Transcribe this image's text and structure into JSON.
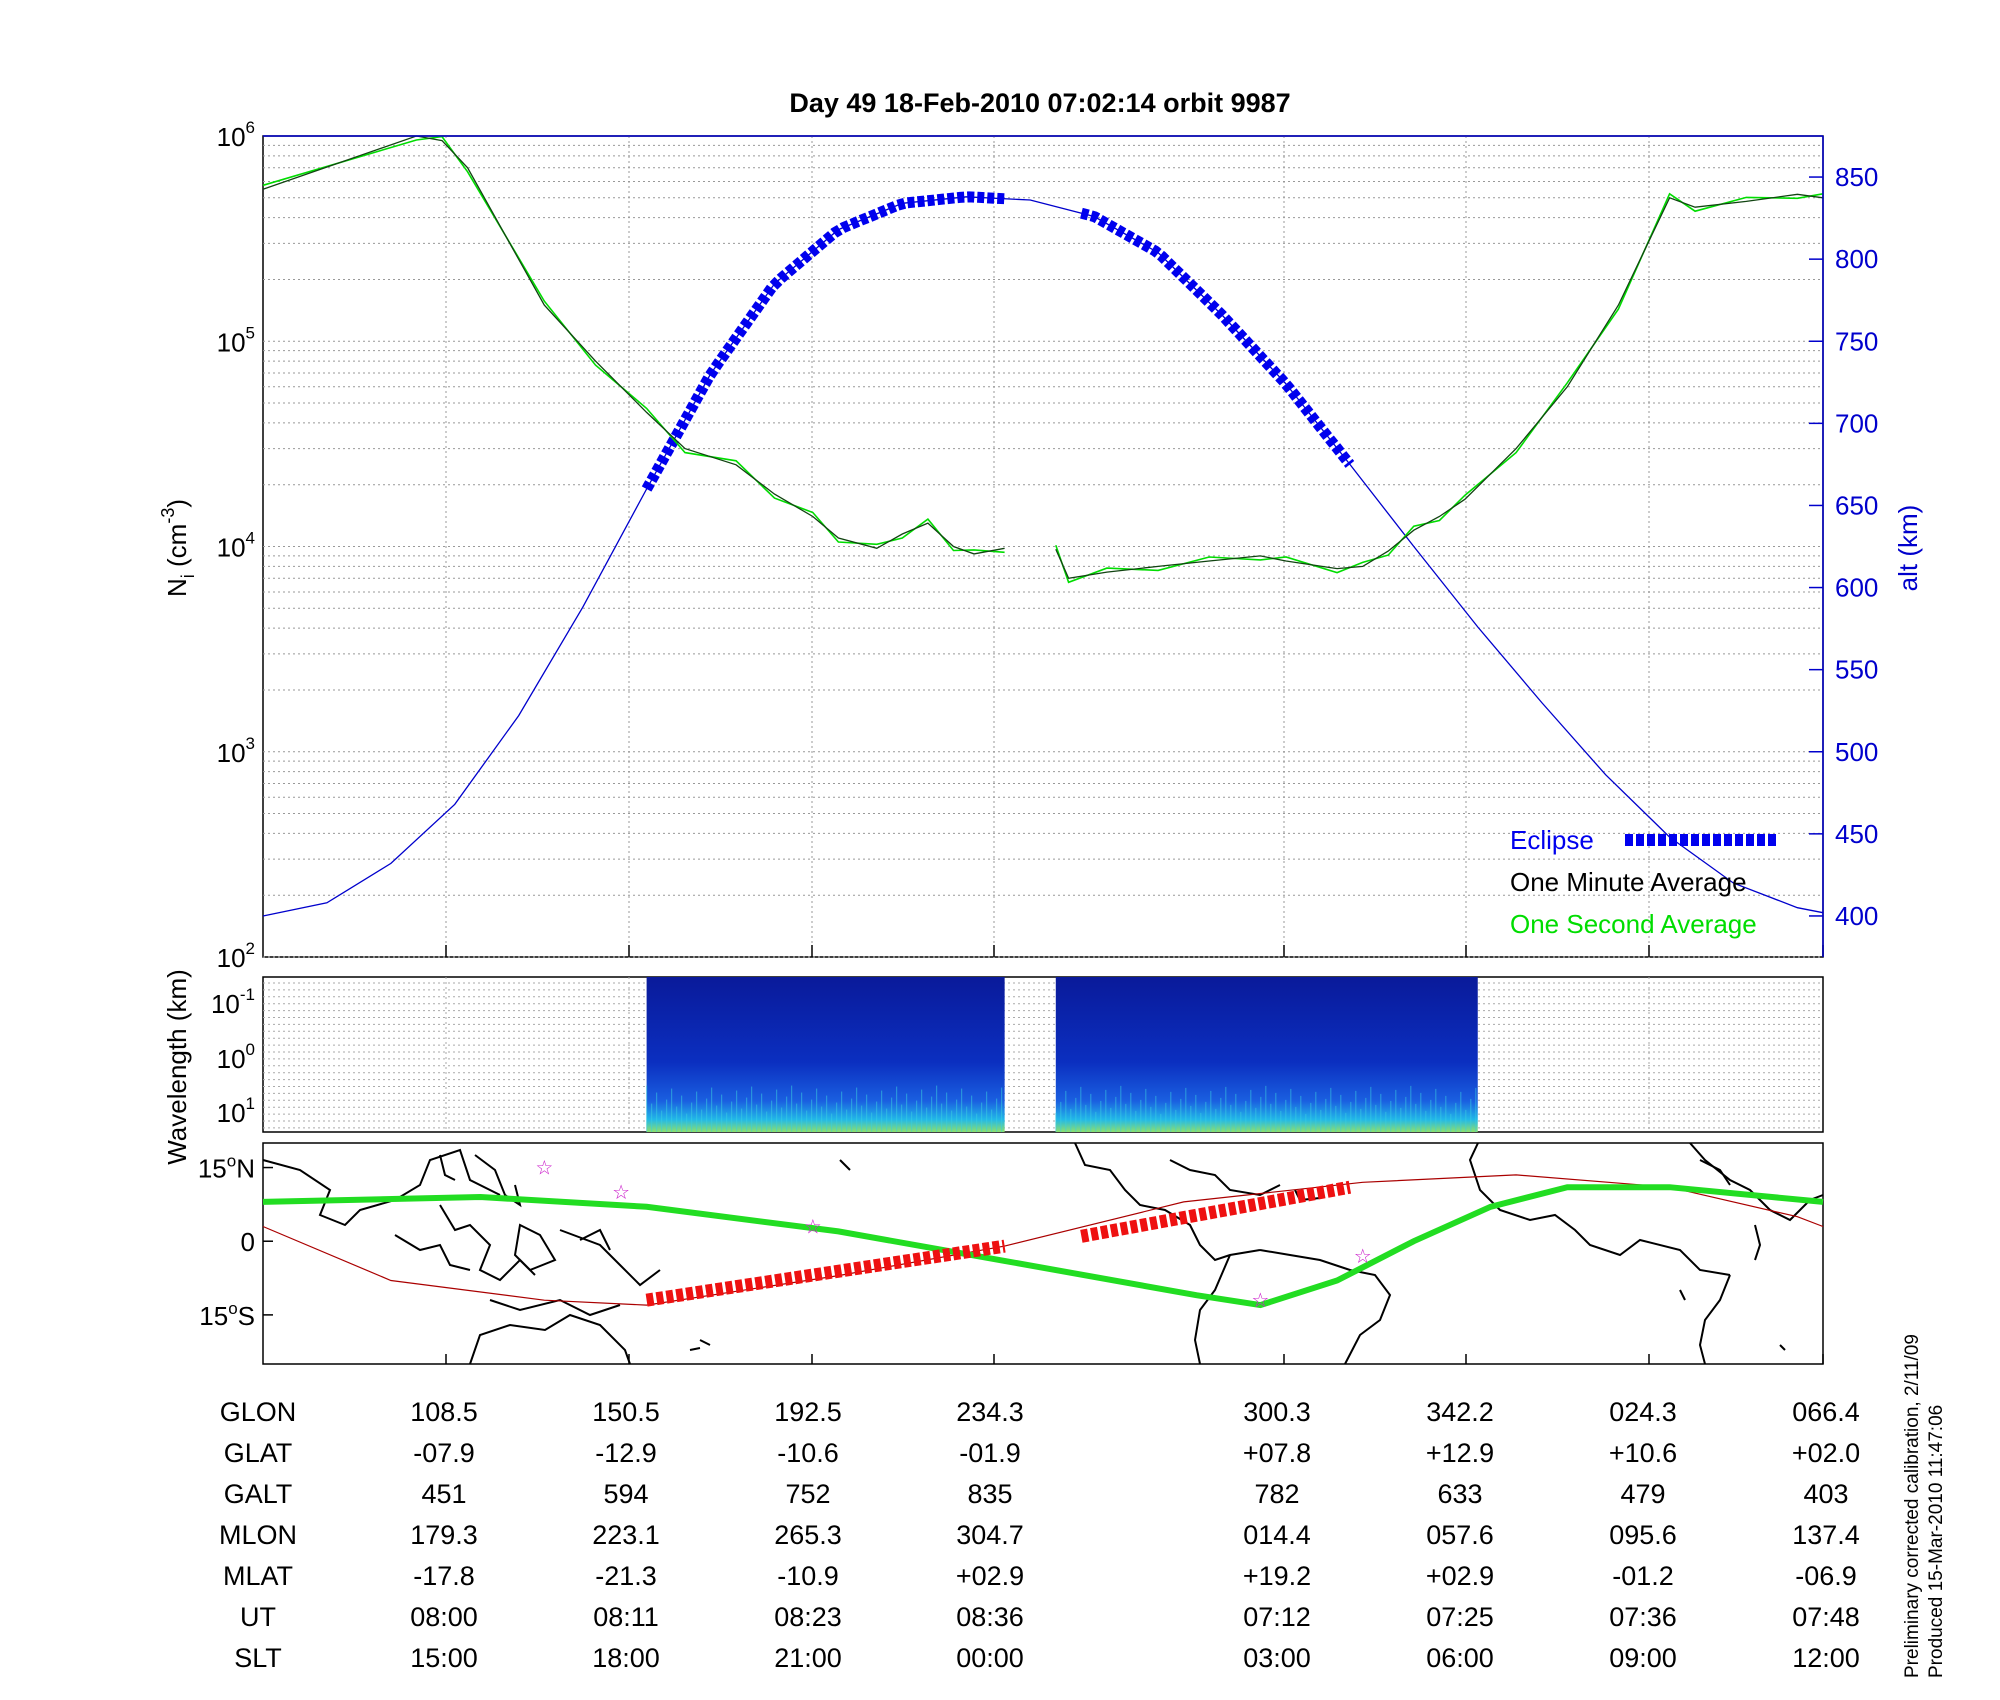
{
  "title": "Day 49  18-Feb-2010 07:02:14   orbit 9987",
  "top_panel": {
    "ylabel_left": "N",
    "ylabel_left_sub": "i",
    "ylabel_left_unit": "(cm",
    "ylabel_left_exp": "-3",
    "ylabel_left_close": ")",
    "ylabel_right": "alt (km)",
    "y_left_ticks": [
      {
        "base": "10",
        "exp": "6",
        "value": 1000000
      },
      {
        "base": "10",
        "exp": "5",
        "value": 100000
      },
      {
        "base": "10",
        "exp": "4",
        "value": 10000
      },
      {
        "base": "10",
        "exp": "3",
        "value": 1000
      },
      {
        "base": "10",
        "exp": "2",
        "value": 100
      }
    ],
    "y_right_ticks": [
      "850",
      "800",
      "750",
      "700",
      "650",
      "600",
      "550",
      "500",
      "450",
      "400"
    ],
    "legend": {
      "eclipse": "Eclipse",
      "minute": "One Minute Average",
      "second": "One Second Average"
    }
  },
  "mid_panel": {
    "ylabel": "Wavelength (km)",
    "ticks": [
      {
        "base": "10",
        "exp": "-1"
      },
      {
        "base": "10",
        "exp": "0"
      },
      {
        "base": "10",
        "exp": "1"
      }
    ]
  },
  "map_panel": {
    "lat_ticks": [
      {
        "value": "15",
        "suffix": "N"
      },
      {
        "value": "0",
        "suffix": ""
      },
      {
        "value": "15",
        "suffix": "S"
      }
    ]
  },
  "table": {
    "rows": [
      {
        "label": "GLON",
        "values": [
          "108.5",
          "150.5",
          "192.5",
          "234.3",
          "300.3",
          "342.2",
          "024.3",
          "066.4"
        ]
      },
      {
        "label": "GLAT",
        "values": [
          "-07.9",
          "-12.9",
          "-10.6",
          "-01.9",
          "+07.8",
          "+12.9",
          "+10.6",
          "+02.0"
        ]
      },
      {
        "label": "GALT",
        "values": [
          "451",
          "594",
          "752",
          "835",
          "782",
          "633",
          "479",
          "403"
        ]
      },
      {
        "label": "MLON",
        "values": [
          "179.3",
          "223.1",
          "265.3",
          "304.7",
          "014.4",
          "057.6",
          "095.6",
          "137.4"
        ]
      },
      {
        "label": "MLAT",
        "values": [
          "-17.8",
          "-21.3",
          "-10.9",
          "+02.9",
          "+19.2",
          "+02.9",
          "-01.2",
          "-06.9"
        ]
      },
      {
        "label": "UT",
        "values": [
          "08:00",
          "08:11",
          "08:23",
          "08:36",
          "07:12",
          "07:25",
          "07:36",
          "07:48"
        ]
      },
      {
        "label": "SLT",
        "values": [
          "15:00",
          "18:00",
          "21:00",
          "00:00",
          "03:00",
          "06:00",
          "09:00",
          "12:00"
        ]
      }
    ]
  },
  "side_note": {
    "line1": "Preliminary corrected calibration, 2/11/09",
    "line2": "Produced 15-Mar-2010 11:47:06"
  },
  "colors": {
    "altitude": "#0000cc",
    "eclipse": "#0000ee",
    "minute_avg": "#000000",
    "second_avg": "#00dd00",
    "track_green": "#22dd22",
    "track_red": "#ee1111",
    "equator_red": "#aa0000",
    "star": "#cc22cc"
  },
  "chart_data": {
    "type": "line",
    "x_ticks_slt": [
      "15:00",
      "18:00",
      "21:00",
      "00:00",
      "03:00",
      "06:00",
      "09:00",
      "12:00"
    ],
    "density": {
      "scale": "log",
      "ylim": [
        100,
        1000000
      ],
      "segments": [
        [
          [
            0.0,
            550000
          ],
          [
            0.12,
            1000000
          ],
          [
            0.14,
            950000
          ],
          [
            0.16,
            700000
          ],
          [
            0.22,
            150000
          ],
          [
            0.26,
            80000
          ],
          [
            0.3,
            45000
          ],
          [
            0.33,
            30000
          ],
          [
            0.37,
            25000
          ],
          [
            0.4,
            18000
          ],
          [
            0.43,
            14000
          ],
          [
            0.45,
            11000
          ],
          [
            0.48,
            9800
          ],
          [
            0.5,
            11500
          ],
          [
            0.52,
            13000
          ],
          [
            0.54,
            10000
          ],
          [
            0.556,
            9200
          ],
          [
            0.58,
            9800
          ]
        ],
        [
          [
            0.62,
            9700
          ],
          [
            0.63,
            7000
          ],
          [
            0.66,
            7500
          ],
          [
            0.7,
            8000
          ],
          [
            0.74,
            8500
          ],
          [
            0.78,
            9000
          ],
          [
            0.8,
            8500
          ],
          [
            0.84,
            7800
          ],
          [
            0.86,
            8000
          ],
          [
            0.88,
            9500
          ],
          [
            0.9,
            12000
          ],
          [
            0.92,
            14000
          ],
          [
            0.94,
            17000
          ],
          [
            0.98,
            30000
          ],
          [
            1.02,
            60000
          ],
          [
            1.06,
            150000
          ],
          [
            1.1,
            500000
          ],
          [
            1.12,
            450000
          ],
          [
            1.16,
            480000
          ],
          [
            1.2,
            520000
          ],
          [
            1.22,
            500000
          ]
        ]
      ]
    },
    "altitude": {
      "ylim": [
        375,
        875
      ],
      "points": [
        [
          0.0,
          400
        ],
        [
          0.05,
          408
        ],
        [
          0.1,
          432
        ],
        [
          0.15,
          468
        ],
        [
          0.2,
          522
        ],
        [
          0.25,
          588
        ],
        [
          0.3,
          660
        ],
        [
          0.35,
          730
        ],
        [
          0.4,
          785
        ],
        [
          0.45,
          818
        ],
        [
          0.5,
          834
        ],
        [
          0.55,
          838
        ],
        [
          0.6,
          836
        ],
        [
          0.65,
          826
        ],
        [
          0.7,
          804
        ],
        [
          0.75,
          766
        ],
        [
          0.8,
          724
        ],
        [
          0.85,
          675
        ],
        [
          0.9,
          625
        ],
        [
          0.95,
          576
        ],
        [
          1.0,
          530
        ],
        [
          1.05,
          486
        ],
        [
          1.1,
          448
        ],
        [
          1.15,
          420
        ],
        [
          1.2,
          405
        ],
        [
          1.22,
          402
        ]
      ]
    },
    "eclipse": [
      [
        0.3,
        0.58
      ],
      [
        0.64,
        0.85
      ]
    ],
    "spectrogram": [
      [
        0.3,
        0.58
      ],
      [
        0.62,
        0.95
      ]
    ],
    "track": {
      "lat_ylim": [
        -25,
        20
      ],
      "green": [
        [
          0.0,
          8
        ],
        [
          0.17,
          9
        ],
        [
          0.3,
          7
        ],
        [
          0.45,
          2
        ],
        [
          0.58,
          -4
        ],
        [
          0.73,
          -11
        ],
        [
          0.78,
          -13
        ],
        [
          0.84,
          -8
        ],
        [
          0.9,
          0
        ],
        [
          0.96,
          7
        ],
        [
          1.02,
          11
        ],
        [
          1.1,
          11
        ],
        [
          1.18,
          9
        ],
        [
          1.22,
          8
        ]
      ],
      "red_thin": [
        [
          0.0,
          3
        ],
        [
          0.1,
          -8
        ],
        [
          0.22,
          -12
        ],
        [
          0.3,
          -13
        ],
        [
          0.45,
          -7
        ],
        [
          0.58,
          -1
        ],
        [
          0.72,
          8
        ],
        [
          0.86,
          12
        ],
        [
          0.98,
          13.5
        ],
        [
          1.1,
          11
        ],
        [
          1.2,
          5
        ],
        [
          1.22,
          3
        ]
      ],
      "red_thick": [
        [
          [
            0.3,
            -12
          ],
          [
            0.58,
            -1
          ]
        ],
        [
          [
            0.64,
            1
          ],
          [
            0.85,
            11
          ]
        ]
      ],
      "stars": [
        [
          0.22,
          15
        ],
        [
          0.28,
          10
        ],
        [
          0.43,
          3
        ],
        [
          0.86,
          -3
        ],
        [
          0.78,
          -12
        ]
      ]
    }
  }
}
